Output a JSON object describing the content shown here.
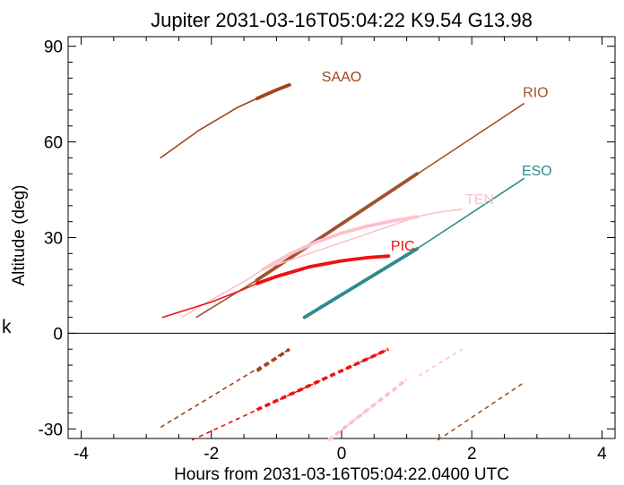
{
  "chart_data": {
    "type": "line",
    "title": "Jupiter 2031-03-16T05:04:22  K9.54  G13.98",
    "xlabel": "Hours from 2031-03-16T05:04:22.0400 UTC",
    "ylabel": "Altitude (deg)",
    "xlim": [
      -4.2,
      4.2
    ],
    "ylim": [
      -33,
      93
    ],
    "xticks": [
      -4,
      -2,
      0,
      2,
      4
    ],
    "xtick_labels": [
      "-4",
      "-2",
      "0",
      "2",
      "4"
    ],
    "yticks": [
      -30,
      0,
      30,
      60,
      90
    ],
    "ytick_labels": [
      "-30",
      "0",
      "30",
      "60",
      "90"
    ],
    "zero_line": true,
    "grid": false,
    "stray_label": "k",
    "series": [
      {
        "name": "SAAO",
        "color": "#A0441A",
        "label_at": [
          0.0,
          79
        ],
        "thin": [
          [
            -2.78,
            55.0
          ],
          [
            -2.2,
            63.5
          ],
          [
            -1.6,
            70.8
          ],
          [
            -1.3,
            73.6
          ]
        ],
        "thick": [
          [
            -1.3,
            73.6
          ],
          [
            -1.0,
            76.3
          ],
          [
            -0.8,
            77.9
          ]
        ],
        "below": [
          [
            [
              -2.78,
              -29.5
            ],
            [
              -0.8,
              -5.0
            ]
          ]
        ],
        "below_thick": [
          [
            -1.3,
            -11.8
          ],
          [
            -0.8,
            -5.0
          ]
        ]
      },
      {
        "name": "RIO",
        "color": "#A0522D",
        "label_at": [
          2.98,
          74
        ],
        "thin": [
          [
            -2.23,
            5.0
          ],
          [
            -1.3,
            16.7
          ],
          [
            2.8,
            72.0
          ]
        ],
        "thick": [
          [
            -1.3,
            16.7
          ],
          [
            1.16,
            50.0
          ]
        ],
        "below": [
          [
            [
              1.48,
              -33.5
            ],
            [
              2.8,
              -15.5
            ]
          ]
        ],
        "below_thick": []
      },
      {
        "name": "ESO",
        "color": "#2E8B8B",
        "label_at": [
          3.0,
          49.5
        ],
        "thin": [
          [
            1.16,
            26.5
          ],
          [
            2.8,
            48.5
          ]
        ],
        "thick": [
          [
            -0.57,
            5.0
          ],
          [
            1.16,
            26.5
          ]
        ],
        "below": [],
        "below_thick": []
      },
      {
        "name": "TEN",
        "color": "#FFC0CB",
        "label_at": [
          2.12,
          40.5
        ],
        "thin": [
          [
            -2.45,
            5.0
          ],
          [
            -2.0,
            10.5
          ],
          [
            -1.5,
            16.2
          ],
          [
            -1.2,
            20.1
          ],
          [
            1.16,
            36.5
          ],
          [
            1.3,
            37.2
          ],
          [
            1.5,
            38.0
          ],
          [
            1.85,
            38.9
          ]
        ],
        "thick": [
          [
            -1.2,
            20.1
          ],
          [
            -0.8,
            24.8
          ],
          [
            -0.4,
            28.5
          ],
          [
            0.0,
            31.4
          ],
          [
            0.4,
            33.6
          ],
          [
            0.8,
            35.3
          ],
          [
            1.16,
            36.5
          ]
        ],
        "below": [
          [
            [
              -0.2,
              -33.5
            ],
            [
              1.0,
              -14.5
            ]
          ],
          [
            [
              1.18,
              -13.5
            ],
            [
              1.85,
              -5.0
            ]
          ]
        ],
        "below_thick": [
          [
            -0.2,
            -33.5
          ],
          [
            1.0,
            -14.5
          ]
        ]
      },
      {
        "name": "PIC",
        "color": "#EE1111",
        "label_at": [
          0.94,
          26
        ],
        "thin": [
          [
            -2.75,
            5.0
          ],
          [
            -2.0,
            9.8
          ],
          [
            -1.5,
            13.8
          ],
          [
            -1.3,
            15.6
          ]
        ],
        "thick": [
          [
            -1.3,
            15.6
          ],
          [
            -1.0,
            17.8
          ],
          [
            -0.5,
            20.8
          ],
          [
            0.0,
            22.7
          ],
          [
            0.4,
            23.7
          ],
          [
            0.72,
            24.2
          ]
        ],
        "below": [
          [
            [
              -2.3,
              -33.5
            ],
            [
              0.72,
              -5.0
            ]
          ]
        ],
        "below_thick": [
          [
            -1.3,
            -24.0
          ],
          [
            0.72,
            -5.0
          ]
        ]
      }
    ]
  }
}
